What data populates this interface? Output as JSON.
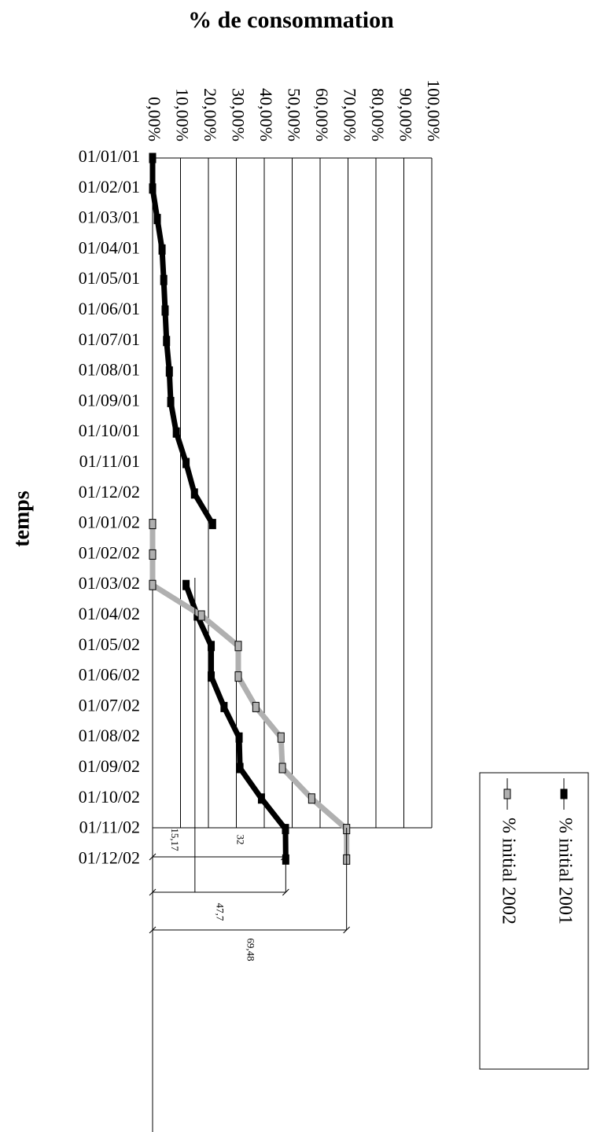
{
  "chart_data": {
    "type": "line",
    "title": "% de consommation",
    "y_axis_label": "temps",
    "categories": [
      "01/01/01",
      "01/02/01",
      "01/03/01",
      "01/04/01",
      "01/05/01",
      "01/06/01",
      "01/07/01",
      "01/08/01",
      "01/09/01",
      "01/10/01",
      "01/11/01",
      "01/12/02",
      "01/01/02",
      "01/02/02",
      "01/03/02",
      "01/04/02",
      "01/05/02",
      "01/06/02",
      "01/07/02",
      "01/08/02",
      "01/09/02",
      "01/10/02",
      "01/11/02",
      "01/12/02"
    ],
    "series": [
      {
        "name": "% initial 2001",
        "color": "#000000",
        "values": [
          0,
          0,
          1.7,
          3.4,
          4,
          4.5,
          5,
          6,
          6.5,
          8.5,
          12,
          15,
          21.5,
          null,
          12,
          16,
          21,
          21,
          25.6,
          31,
          31.3,
          39,
          47.6,
          47.7
        ]
      },
      {
        "name": "% initial 2002",
        "color": "#b0b0b0",
        "values": [
          null,
          null,
          null,
          null,
          null,
          null,
          null,
          null,
          null,
          null,
          null,
          null,
          0,
          0,
          0,
          17.5,
          30.7,
          30.7,
          37,
          46,
          46.5,
          57,
          69.5,
          69.5
        ]
      }
    ],
    "xlim": [
      0,
      100
    ],
    "xticks": [
      {
        "value": 0,
        "label": "0,00%"
      },
      {
        "value": 10,
        "label": "10,00%"
      },
      {
        "value": 20,
        "label": "20,00%"
      },
      {
        "value": 30,
        "label": "30,00%"
      },
      {
        "value": 40,
        "label": "40,00%"
      },
      {
        "value": 50,
        "label": "50,00%"
      },
      {
        "value": 60,
        "label": "60,00%"
      },
      {
        "value": 70,
        "label": "70,00%"
      },
      {
        "value": 80,
        "label": "80,00%"
      },
      {
        "value": 90,
        "label": "90,00%"
      },
      {
        "value": 100,
        "label": "100,00%"
      }
    ],
    "grid": true,
    "dimensions": [
      {
        "label": "15,17",
        "value": 15.17
      },
      {
        "label": "32",
        "value": 32
      },
      {
        "label": "47,7",
        "value": 47.7
      },
      {
        "label": "69,48",
        "value": 69.48
      }
    ]
  }
}
